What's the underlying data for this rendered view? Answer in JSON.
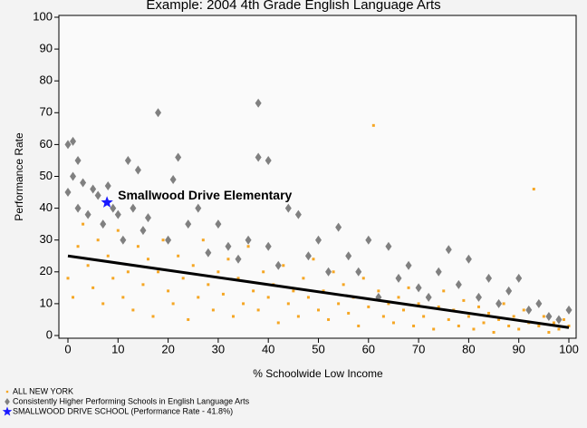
{
  "chart_data": {
    "type": "scatter",
    "title": "Example: 2004 4th Grade English Language Arts",
    "xlabel": "% Schoolwide Low Income",
    "ylabel": "Performance Rate",
    "xlim": [
      0,
      100
    ],
    "ylim": [
      0,
      100
    ],
    "xticks": [
      0,
      10,
      20,
      30,
      40,
      50,
      60,
      70,
      80,
      90,
      100
    ],
    "yticks": [
      0,
      10,
      20,
      30,
      40,
      50,
      60,
      70,
      80,
      90,
      100
    ],
    "annotation": "Smallwood Drive Elementary",
    "series": [
      {
        "name": "ALL NEW YORK",
        "color": "#f5a623",
        "marker": "dot",
        "x": [
          0,
          2,
          1,
          3,
          4,
          5,
          6,
          7,
          8,
          9,
          10,
          11,
          12,
          13,
          14,
          15,
          16,
          17,
          18,
          19,
          20,
          21,
          22,
          23,
          24,
          25,
          26,
          27,
          28,
          29,
          30,
          31,
          32,
          33,
          34,
          35,
          36,
          37,
          38,
          39,
          40,
          41,
          42,
          43,
          44,
          45,
          46,
          47,
          48,
          49,
          50,
          51,
          52,
          53,
          54,
          55,
          56,
          57,
          58,
          59,
          60,
          61,
          62,
          63,
          64,
          65,
          66,
          67,
          68,
          69,
          70,
          71,
          72,
          73,
          74,
          75,
          76,
          77,
          78,
          79,
          80,
          81,
          82,
          83,
          84,
          85,
          86,
          87,
          88,
          89,
          90,
          91,
          92,
          93,
          94,
          95,
          96,
          97,
          98,
          99,
          100
        ],
        "values": [
          18,
          28,
          12,
          35,
          22,
          15,
          30,
          10,
          25,
          18,
          33,
          12,
          20,
          8,
          28,
          16,
          24,
          6,
          20,
          30,
          14,
          10,
          25,
          18,
          5,
          22,
          12,
          30,
          16,
          8,
          20,
          13,
          24,
          6,
          18,
          10,
          28,
          14,
          8,
          20,
          12,
          16,
          4,
          22,
          10,
          14,
          6,
          18,
          12,
          24,
          8,
          14,
          5,
          20,
          10,
          16,
          7,
          12,
          3,
          18,
          9,
          66,
          14,
          6,
          10,
          4,
          12,
          8,
          15,
          3,
          10,
          6,
          12,
          2,
          9,
          14,
          5,
          8,
          3,
          11,
          6,
          2,
          9,
          4,
          7,
          1,
          5,
          10,
          3,
          6,
          2,
          8,
          4,
          46,
          3,
          6,
          1,
          4,
          2,
          5,
          3
        ]
      },
      {
        "name": "Consistently Higher Performing Schools in English Language Arts",
        "color": "#808080",
        "marker": "diamond",
        "x": [
          0,
          0,
          1,
          1,
          2,
          2,
          3,
          4,
          5,
          6,
          7,
          8,
          9,
          10,
          11,
          12,
          13,
          14,
          15,
          16,
          18,
          20,
          21,
          22,
          24,
          26,
          28,
          30,
          32,
          34,
          36,
          38,
          38,
          40,
          40,
          42,
          44,
          46,
          48,
          50,
          52,
          54,
          56,
          58,
          60,
          62,
          64,
          66,
          68,
          70,
          72,
          74,
          76,
          78,
          80,
          82,
          84,
          86,
          88,
          90,
          92,
          94,
          96,
          98,
          100
        ],
        "values": [
          60,
          45,
          61,
          50,
          55,
          40,
          48,
          38,
          46,
          44,
          35,
          47,
          40,
          38,
          30,
          55,
          40,
          52,
          33,
          37,
          70,
          30,
          49,
          56,
          35,
          40,
          26,
          35,
          28,
          24,
          30,
          73,
          56,
          55,
          28,
          22,
          40,
          38,
          25,
          30,
          20,
          34,
          25,
          20,
          30,
          12,
          28,
          18,
          22,
          15,
          12,
          20,
          27,
          16,
          24,
          12,
          18,
          10,
          14,
          18,
          8,
          10,
          6,
          5,
          8
        ]
      },
      {
        "name": "SMALLWOOD DRIVE SCHOOL (Performance Rate - 41.8%)",
        "color": "#1a1aff",
        "marker": "star",
        "x": [
          7.8
        ],
        "values": [
          41.8
        ]
      }
    ],
    "trend_line": {
      "x": [
        0,
        100
      ],
      "values": [
        25,
        2.5
      ],
      "color": "#000000"
    }
  }
}
